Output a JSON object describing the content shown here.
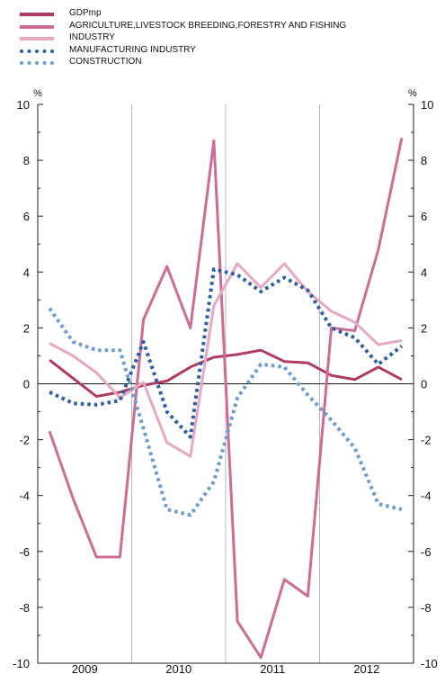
{
  "chart_data": {
    "type": "line",
    "unit_left": "%",
    "unit_right": "%",
    "ylim": [
      -10,
      10
    ],
    "y_ticks": [
      10,
      8,
      6,
      4,
      2,
      0,
      -2,
      -4,
      -6,
      -8,
      -10
    ],
    "year_labels": [
      "2009",
      "2010",
      "2011",
      "2012"
    ],
    "x": [
      "2009 Q1",
      "2009 Q2",
      "2009 Q3",
      "2009 Q4",
      "2010 Q1",
      "2010 Q2",
      "2010 Q3",
      "2010 Q4",
      "2011 Q1",
      "2011 Q2",
      "2011 Q3",
      "2011 Q4",
      "2012 Q1",
      "2012 Q2",
      "2012 Q3",
      "2012 Q4"
    ],
    "series": [
      {
        "name": "GDPmp",
        "color": "#b03a64",
        "style": "solid",
        "values": [
          0.85,
          0.2,
          -0.45,
          -0.3,
          -0.05,
          0.1,
          0.6,
          0.95,
          1.05,
          1.2,
          0.8,
          0.75,
          0.3,
          0.15,
          0.6,
          0.15
        ]
      },
      {
        "name": "AGRICULTURE,LIVESTOCK BREEDING,FORESTRY AND FISHING",
        "color": "#cf6c95",
        "style": "solid",
        "values": [
          -1.7,
          -4.1,
          -6.2,
          -6.2,
          2.3,
          4.2,
          2.0,
          8.7,
          -8.5,
          -9.8,
          -7.0,
          -7.6,
          2.0,
          1.9,
          4.8,
          8.8
        ]
      },
      {
        "name": "INDUSTRY",
        "color": "#e7a8c2",
        "style": "solid",
        "values": [
          1.45,
          1.0,
          0.4,
          -0.5,
          0.05,
          -2.1,
          -2.6,
          2.8,
          4.3,
          3.45,
          4.3,
          3.3,
          2.6,
          2.2,
          1.4,
          1.55
        ]
      },
      {
        "name": "MANUFACTURING INDUSTRY",
        "color": "#2b5ea6",
        "style": "dotted",
        "values": [
          -0.3,
          -0.7,
          -0.75,
          -0.6,
          1.5,
          -1.0,
          -1.9,
          4.1,
          3.9,
          3.3,
          3.8,
          3.35,
          2.0,
          1.65,
          0.7,
          1.35
        ]
      },
      {
        "name": "CONSTRUCTION",
        "color": "#6a9bd1",
        "style": "dotted",
        "values": [
          2.7,
          1.5,
          1.2,
          1.2,
          -1.6,
          -4.5,
          -4.7,
          -3.5,
          -0.5,
          0.7,
          0.6,
          -0.4,
          -1.3,
          -2.3,
          -4.3,
          -4.5
        ]
      }
    ]
  }
}
